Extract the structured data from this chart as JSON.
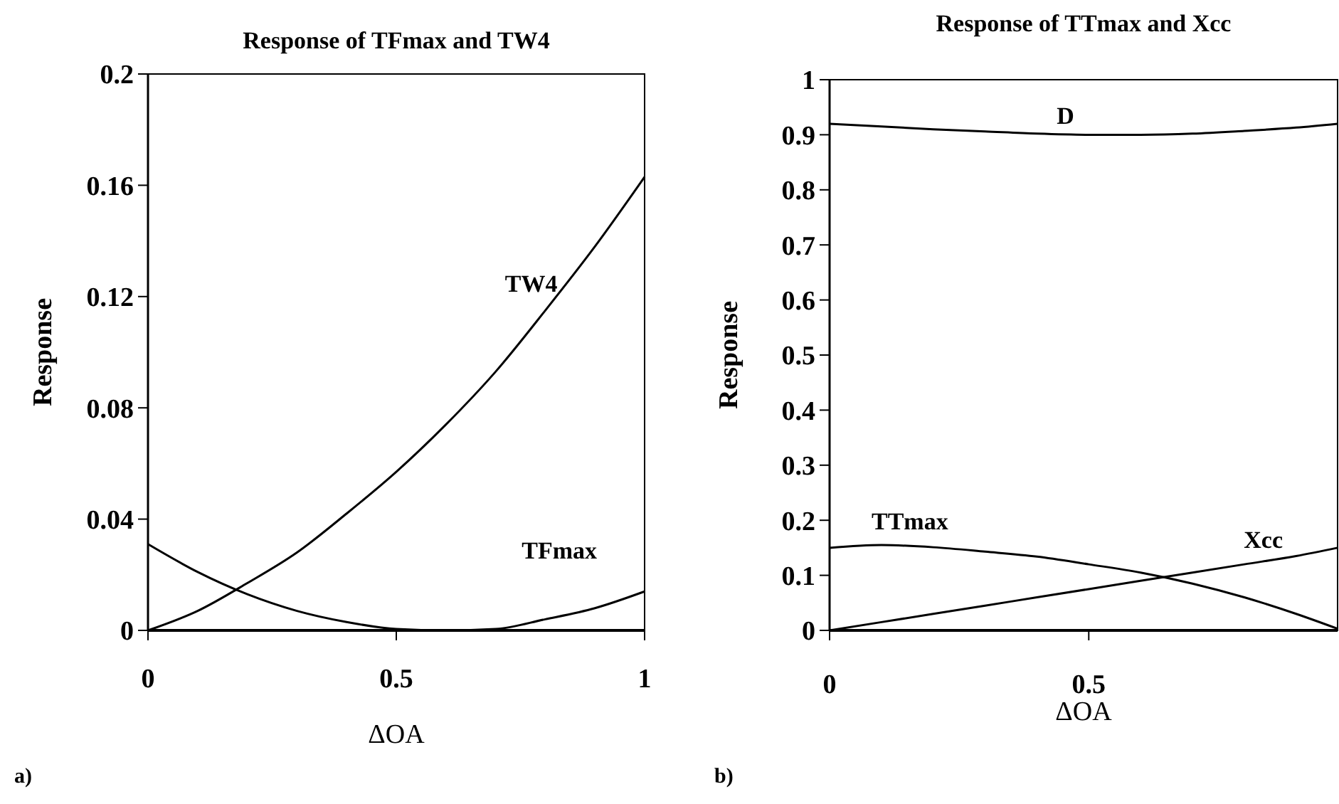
{
  "chart_data": [
    {
      "type": "line",
      "title": "Response of TFmax and TW4",
      "xlabel": "ΔOA",
      "ylabel": "Response",
      "x": [
        0,
        0.1,
        0.2,
        0.3,
        0.4,
        0.5,
        0.6,
        0.7,
        0.8,
        0.9,
        1
      ],
      "xlim": [
        0,
        1
      ],
      "xticks": [
        0,
        0.5,
        1
      ],
      "ylim": [
        0,
        0.2
      ],
      "yticks": [
        0,
        0.04,
        0.08,
        0.12,
        0.16,
        0.2
      ],
      "grid": false,
      "marker": "none",
      "line_style": "solid",
      "annotations": [
        "a)"
      ],
      "series": [
        {
          "name": "TW4",
          "color": "#000000",
          "values": [
            0,
            0.007,
            0.017,
            0.028,
            0.042,
            0.057,
            0.074,
            0.093,
            0.115,
            0.138,
            0.163
          ]
        },
        {
          "name": "TFmax",
          "color": "#000000",
          "values": [
            0.031,
            0.021,
            0.013,
            0.007,
            0.003,
            0.0005,
            0,
            0.0005,
            0.004,
            0.008,
            0.014
          ]
        }
      ]
    },
    {
      "type": "line",
      "title": "Response of TTmax and Xcc",
      "xlabel": "ΔOA",
      "ylabel": "Response",
      "x": [
        0,
        0.1,
        0.2,
        0.3,
        0.4,
        0.5,
        0.6,
        0.7,
        0.8,
        0.9,
        0.98
      ],
      "xlim": [
        0,
        0.98
      ],
      "xticks": [
        0,
        0.5
      ],
      "ylim": [
        0,
        1
      ],
      "yticks": [
        0,
        0.1,
        0.2,
        0.3,
        0.4,
        0.5,
        0.6,
        0.7,
        0.8,
        0.9,
        1
      ],
      "grid": false,
      "marker": "none",
      "line_style": "solid",
      "annotations": [
        "b)"
      ],
      "series": [
        {
          "name": "D",
          "color": "#000000",
          "values": [
            0.92,
            0.915,
            0.91,
            0.906,
            0.902,
            0.9,
            0.9,
            0.902,
            0.907,
            0.913,
            0.92
          ]
        },
        {
          "name": "TTmax",
          "color": "#000000",
          "values": [
            0.15,
            0.155,
            0.151,
            0.143,
            0.134,
            0.12,
            0.105,
            0.085,
            0.06,
            0.03,
            0.003
          ]
        },
        {
          "name": "Xcc",
          "color": "#000000",
          "values": [
            0,
            0.015,
            0.03,
            0.045,
            0.06,
            0.075,
            0.09,
            0.105,
            0.12,
            0.135,
            0.15
          ]
        }
      ]
    }
  ]
}
